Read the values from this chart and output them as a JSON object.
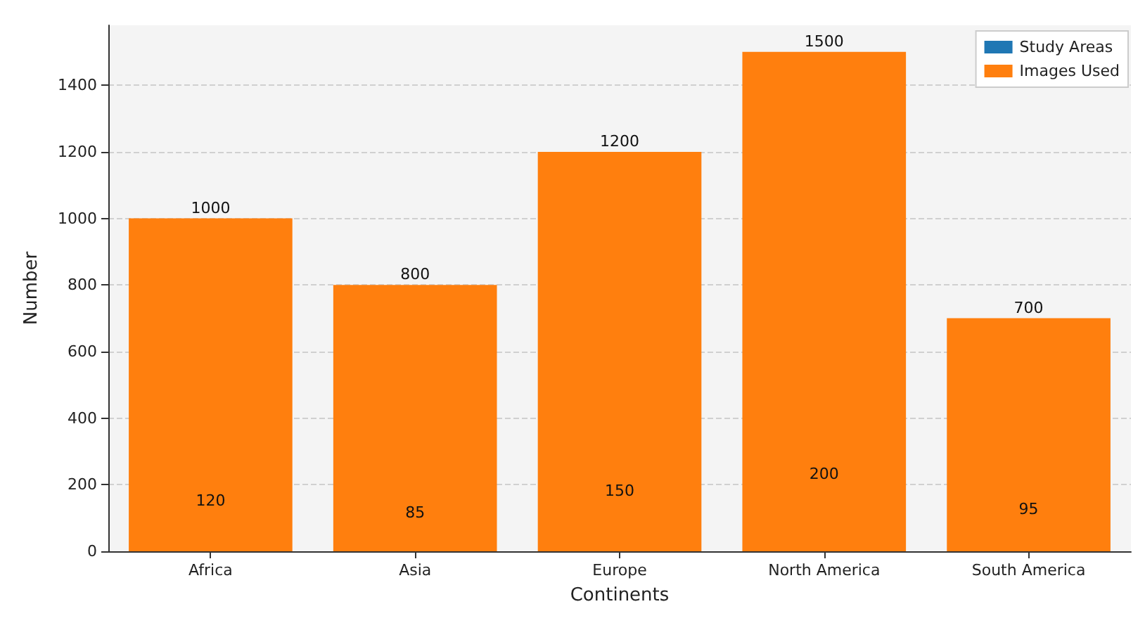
{
  "chart_data": {
    "type": "bar",
    "xlabel": "Continents",
    "ylabel": "Number",
    "categories": [
      "Africa",
      "Asia",
      "Europe",
      "North America",
      "South America"
    ],
    "series": [
      {
        "name": "Study Areas",
        "color": "#1f77b4",
        "values": [
          null,
          null,
          null,
          null,
          null
        ]
      },
      {
        "name": "Images Used",
        "color": "#ff7f0e",
        "values": [
          1000,
          800,
          1200,
          1500,
          700
        ]
      }
    ],
    "annotations": [
      "120",
      "85",
      "150",
      "200",
      "95"
    ],
    "ylim": [
      0,
      1580
    ],
    "yticks": [
      0,
      200,
      400,
      600,
      800,
      1000,
      1200,
      1400
    ],
    "grid": "y",
    "legend": "top right",
    "data_labels": true
  }
}
